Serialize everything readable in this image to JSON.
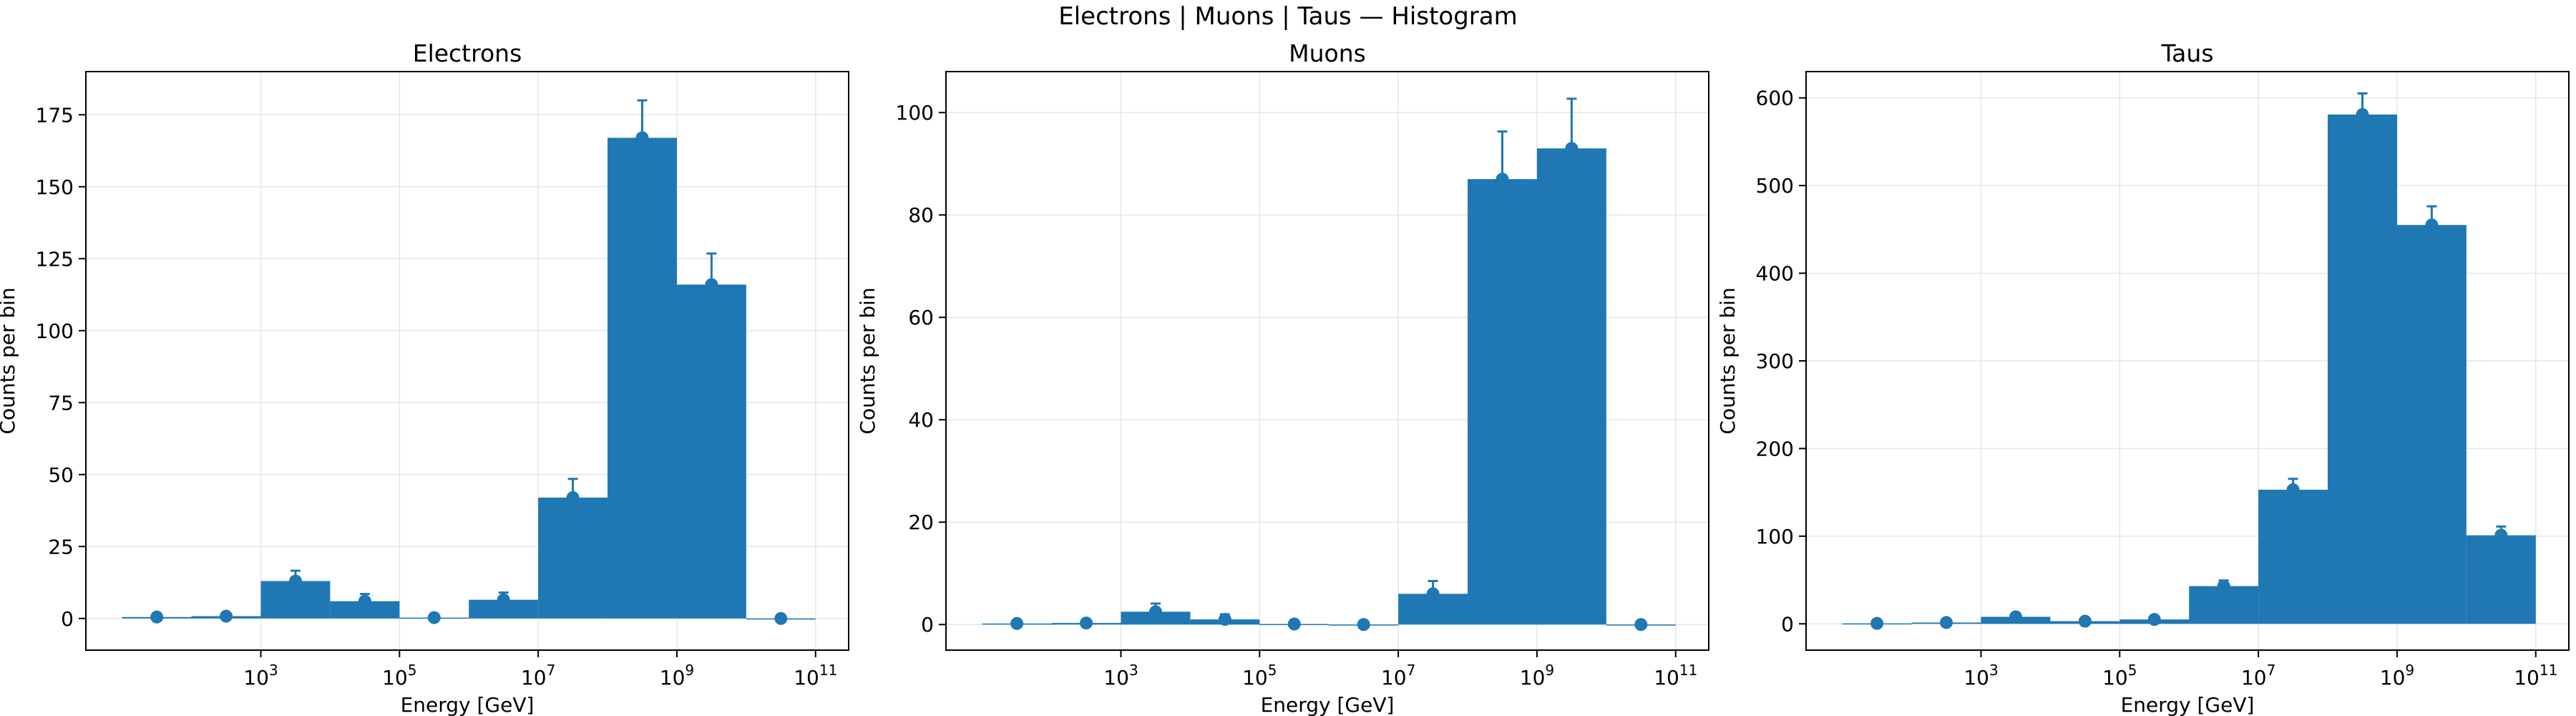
{
  "figure": {
    "title": "Electrons | Muons | Taus — Histogram",
    "bar_color": "#1f77b4",
    "grid_color": "#e6e6e6"
  },
  "chart_data": [
    {
      "type": "bar",
      "title": "Electrons",
      "xlabel": "Energy [GeV]",
      "ylabel": "Counts per bin",
      "xscale": "log",
      "xlim": [
        3.0,
        300000000000.0
      ],
      "ylim": [
        -11,
        190
      ],
      "xticks": [
        1000,
        100000,
        10000000,
        1000000000,
        100000000000
      ],
      "xtick_labels": [
        {
          "base": "10",
          "exp": "3"
        },
        {
          "base": "10",
          "exp": "5"
        },
        {
          "base": "10",
          "exp": "7"
        },
        {
          "base": "10",
          "exp": "9"
        },
        {
          "base": "10",
          "exp": "11"
        }
      ],
      "yticks": [
        0,
        25,
        50,
        75,
        100,
        125,
        150,
        175
      ],
      "grid": true,
      "bin_edges": [
        10,
        100,
        1000,
        10000,
        100000,
        1000000,
        10000000,
        100000000,
        1000000000,
        10000000000,
        100000000000
      ],
      "values": [
        0.5,
        0.8,
        13,
        6,
        0.3,
        6.5,
        42,
        167,
        116,
        0
      ],
      "errors": [
        0.7,
        0.9,
        3.6,
        2.5,
        0.5,
        2.5,
        6.5,
        13,
        10.8,
        0
      ]
    },
    {
      "type": "bar",
      "title": "Muons",
      "xlabel": "Energy [GeV]",
      "ylabel": "Counts per bin",
      "xscale": "log",
      "xlim": [
        3.0,
        300000000000.0
      ],
      "ylim": [
        -5,
        108
      ],
      "xticks": [
        1000,
        100000,
        10000000,
        1000000000,
        100000000000
      ],
      "xtick_labels": [
        {
          "base": "10",
          "exp": "3"
        },
        {
          "base": "10",
          "exp": "5"
        },
        {
          "base": "10",
          "exp": "7"
        },
        {
          "base": "10",
          "exp": "9"
        },
        {
          "base": "10",
          "exp": "11"
        }
      ],
      "yticks": [
        0,
        20,
        40,
        60,
        80,
        100
      ],
      "grid": true,
      "bin_edges": [
        10,
        100,
        1000,
        10000,
        100000,
        1000000,
        10000000,
        100000000,
        1000000000,
        10000000000,
        100000000000
      ],
      "values": [
        0.2,
        0.3,
        2.5,
        1,
        0.1,
        0,
        6,
        87,
        93,
        0
      ],
      "errors": [
        0.3,
        0.5,
        1.6,
        1,
        0.3,
        0,
        2.5,
        9.3,
        9.7,
        0
      ]
    },
    {
      "type": "bar",
      "title": "Taus",
      "xlabel": "Energy [GeV]",
      "ylabel": "Counts per bin",
      "xscale": "log",
      "xlim": [
        3.0,
        300000000000.0
      ],
      "ylim": [
        -30,
        630
      ],
      "xticks": [
        1000,
        100000,
        10000000,
        1000000000,
        100000000000
      ],
      "xtick_labels": [
        {
          "base": "10",
          "exp": "3"
        },
        {
          "base": "10",
          "exp": "5"
        },
        {
          "base": "10",
          "exp": "7"
        },
        {
          "base": "10",
          "exp": "9"
        },
        {
          "base": "10",
          "exp": "11"
        }
      ],
      "yticks": [
        0,
        100,
        200,
        300,
        400,
        500,
        600
      ],
      "grid": true,
      "bin_edges": [
        10,
        100,
        1000,
        10000,
        100000,
        1000000,
        10000000,
        100000000,
        1000000000,
        10000000000,
        100000000000
      ],
      "values": [
        0.5,
        1.5,
        8,
        3,
        5,
        43,
        153,
        581,
        455,
        101
      ],
      "errors": [
        1,
        1.5,
        3,
        2,
        2.5,
        6.5,
        12.4,
        24.1,
        21.3,
        10
      ]
    }
  ]
}
